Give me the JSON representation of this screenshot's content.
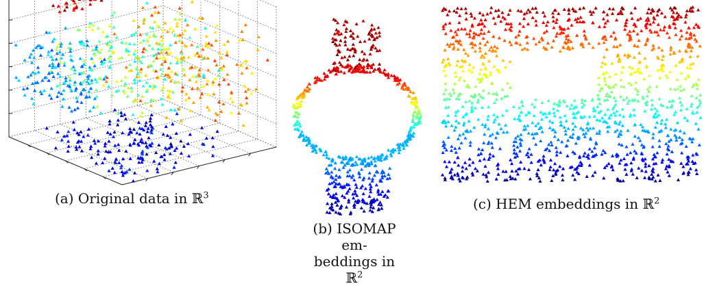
{
  "captions": {
    "a": {
      "label": "(a)",
      "text": "Original data in",
      "space": "ℝ",
      "power": "3"
    },
    "b": {
      "label": "(b)",
      "text_line1": "ISOMAP em-",
      "text_line2": "beddings in",
      "space": "ℝ",
      "power": "2"
    },
    "c": {
      "label": "(c)",
      "text": "HEM embeddings in",
      "space": "ℝ",
      "power": "2"
    }
  },
  "colormap": [
    "#00008f",
    "#0000ff",
    "#0080ff",
    "#00ffff",
    "#80ff80",
    "#ffff00",
    "#ff8000",
    "#ff0000",
    "#800000"
  ],
  "chart_data": [
    {
      "type": "scatter",
      "subtype": "3d",
      "caption": "(a) Original data in ℝ3",
      "grid": true,
      "axis_ticks_labeled": false,
      "point_count": 900,
      "color_encoding": "jet colormap by intrinsic height"
    },
    {
      "type": "scatter",
      "caption": "(b) ISOMAP embeddings in ℝ2",
      "axes_visible": false,
      "point_count": 700,
      "color_encoding": "jet colormap, red at top to dark blue at bottom",
      "shape": "ring with vertical clusters above and below"
    },
    {
      "type": "scatter",
      "caption": "(c) HEM embeddings in ℝ2",
      "axes_visible": false,
      "point_count": 1300,
      "color_encoding": "jet colormap, red at top to dark blue at bottom",
      "shape": "rectangle with empty hole in middle"
    }
  ]
}
